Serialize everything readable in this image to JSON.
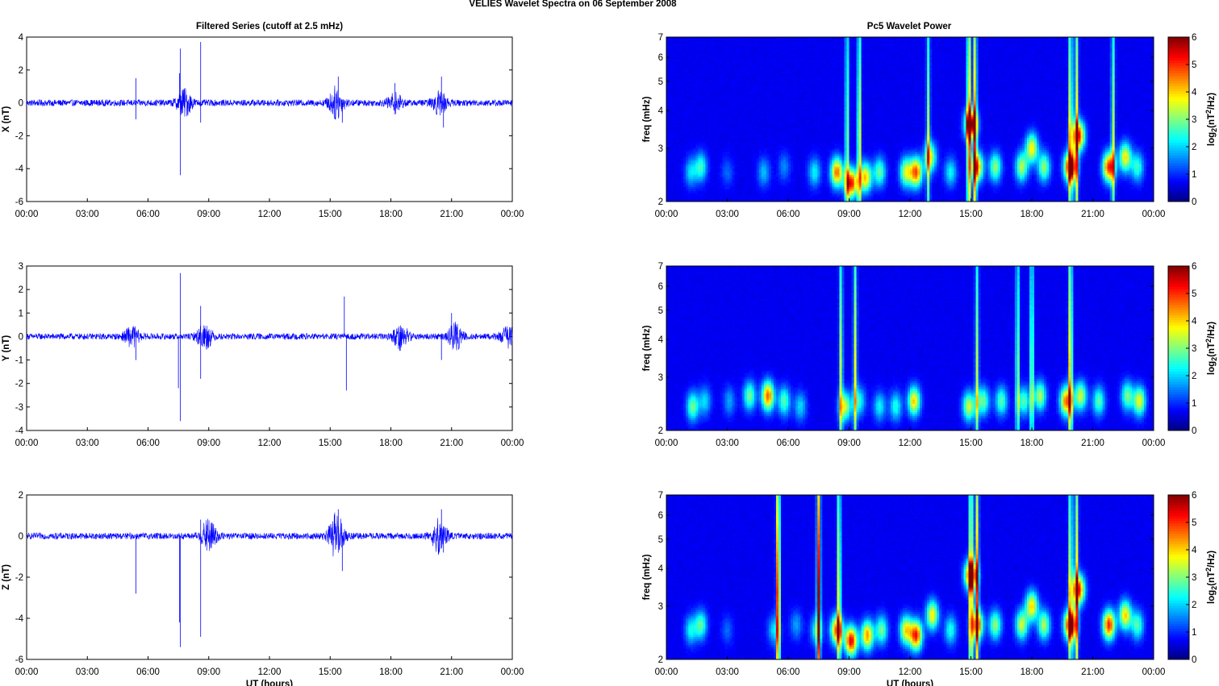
{
  "figure_title": "VELIES Wavelet Spectra on 06 September 2008",
  "left_title": "Filtered Series (cutoff at 2.5 mHz)",
  "right_title": "Pc5 Wavelet Power",
  "x_axis_label": "UT (hours)",
  "x_ticks": [
    "00:00",
    "03:00",
    "06:00",
    "09:00",
    "12:00",
    "15:00",
    "18:00",
    "21:00",
    "00:00"
  ],
  "freq_label": "freq (mHz)",
  "freq_ticks": [
    "2",
    "3",
    "4",
    "5",
    "6",
    "7"
  ],
  "colorbar_ticks": [
    "0",
    "1",
    "2",
    "3",
    "4",
    "5",
    "6"
  ],
  "colorbar_label": {
    "base": "log",
    "sub": "2",
    "mid": "(nT",
    "sup": "2",
    "end": "/Hz)"
  },
  "panels": [
    {
      "ylabel": "X (nT)",
      "yticks": [
        "4",
        "2",
        "0",
        "-2",
        "-4",
        "-6"
      ]
    },
    {
      "ylabel": "Y (nT)",
      "yticks": [
        "3",
        "2",
        "1",
        "0",
        "-1",
        "-2",
        "-3",
        "-4"
      ]
    },
    {
      "ylabel": "Z (nT)",
      "yticks": [
        "2",
        "0",
        "-2",
        "-4",
        "-6"
      ]
    }
  ],
  "chart_data": [
    {
      "type": "line",
      "title": "Filtered Series (cutoff at 2.5 mHz)",
      "xlabel": "",
      "ylabel": "X (nT)",
      "xlim": [
        0,
        24
      ],
      "ylim": [
        -6,
        4
      ],
      "series": [
        {
          "color": "#0000ff",
          "noise_amplitude_nT": 0.15,
          "bursts": [
            [
              7.8,
              0.6
            ],
            [
              15.3,
              0.7
            ],
            [
              20.4,
              0.5
            ],
            [
              18.2,
              0.4
            ]
          ],
          "spikes": [
            [
              5.4,
              1.5
            ],
            [
              5.4,
              -1.0
            ],
            [
              7.6,
              3.3
            ],
            [
              7.6,
              -4.4
            ],
            [
              7.55,
              1.8
            ],
            [
              8.6,
              3.7
            ],
            [
              8.6,
              -1.2
            ],
            [
              15.4,
              1.6
            ],
            [
              15.6,
              -1.2
            ],
            [
              18.2,
              1.2
            ],
            [
              20.5,
              1.6
            ],
            [
              20.6,
              -1.5
            ]
          ]
        }
      ]
    },
    {
      "type": "line",
      "title": "",
      "xlabel": "",
      "ylabel": "Y (nT)",
      "xlim": [
        0,
        24
      ],
      "ylim": [
        -4,
        3
      ],
      "series": [
        {
          "color": "#0000ff",
          "noise_amplitude_nT": 0.1,
          "bursts": [
            [
              5.2,
              0.3
            ],
            [
              8.8,
              0.4
            ],
            [
              18.5,
              0.4
            ],
            [
              21.2,
              0.4
            ],
            [
              23.8,
              0.3
            ]
          ],
          "spikes": [
            [
              5.4,
              -1.0
            ],
            [
              7.6,
              2.7
            ],
            [
              7.6,
              -3.6
            ],
            [
              7.5,
              -2.2
            ],
            [
              8.6,
              1.3
            ],
            [
              8.6,
              -1.8
            ],
            [
              15.7,
              1.7
            ],
            [
              15.8,
              -2.3
            ],
            [
              20.5,
              -1.0
            ],
            [
              21.0,
              1.0
            ]
          ]
        }
      ]
    },
    {
      "type": "line",
      "title": "",
      "xlabel": "UT (hours)",
      "ylabel": "Z (nT)",
      "xlim": [
        0,
        24
      ],
      "ylim": [
        -6,
        2
      ],
      "series": [
        {
          "color": "#0000ff",
          "noise_amplitude_nT": 0.12,
          "bursts": [
            [
              9.0,
              0.6
            ],
            [
              15.3,
              0.8
            ],
            [
              20.4,
              0.6
            ]
          ],
          "spikes": [
            [
              5.4,
              -2.8
            ],
            [
              7.6,
              -5.4
            ],
            [
              7.55,
              -4.2
            ],
            [
              8.6,
              -4.9
            ],
            [
              8.6,
              0.8
            ],
            [
              15.4,
              1.3
            ],
            [
              15.6,
              -1.7
            ],
            [
              20.5,
              1.3
            ],
            [
              20.6,
              -0.8
            ]
          ]
        }
      ]
    },
    {
      "type": "heatmap",
      "title": "Pc5 Wavelet Power",
      "xlabel": "",
      "ylabel": "freq (mHz)",
      "xlim": [
        0,
        24
      ],
      "ylim": [
        2,
        7
      ],
      "yscale": "log",
      "zlim": [
        0,
        6
      ],
      "colormap": "jet",
      "blobs": [
        [
          1.2,
          2.5,
          1.6
        ],
        [
          1.7,
          2.6,
          2.2
        ],
        [
          3.0,
          2.5,
          0.8
        ],
        [
          4.8,
          2.5,
          1.4
        ],
        [
          5.8,
          2.6,
          1.0
        ],
        [
          7.3,
          2.5,
          1.8
        ],
        [
          8.4,
          2.5,
          4.5
        ],
        [
          9.1,
          2.3,
          5.3
        ],
        [
          9.8,
          2.4,
          4.0
        ],
        [
          10.5,
          2.5,
          2.5
        ],
        [
          11.8,
          2.5,
          3.2
        ],
        [
          12.3,
          2.5,
          4.6
        ],
        [
          13.0,
          2.8,
          3.2
        ],
        [
          14.0,
          2.5,
          1.8
        ],
        [
          15.0,
          3.6,
          5.6
        ],
        [
          15.3,
          2.6,
          4.4
        ],
        [
          16.2,
          2.6,
          2.8
        ],
        [
          17.5,
          2.6,
          3.0
        ],
        [
          18.0,
          3.0,
          3.6
        ],
        [
          18.6,
          2.6,
          2.8
        ],
        [
          19.9,
          2.6,
          5.9
        ],
        [
          20.3,
          3.3,
          5.0
        ],
        [
          21.8,
          2.6,
          5.0
        ],
        [
          22.6,
          2.8,
          3.6
        ],
        [
          23.2,
          2.6,
          2.2
        ]
      ],
      "streaks": [
        [
          8.9,
          3.0
        ],
        [
          9.5,
          3.8
        ],
        [
          14.9,
          5.2
        ],
        [
          15.2,
          4.8
        ],
        [
          19.9,
          4.2
        ],
        [
          20.2,
          4.0
        ],
        [
          22.0,
          3.2
        ],
        [
          12.9,
          3.0
        ]
      ]
    },
    {
      "type": "heatmap",
      "title": "",
      "xlabel": "",
      "ylabel": "freq (mHz)",
      "xlim": [
        0,
        24
      ],
      "ylim": [
        2,
        7
      ],
      "yscale": "log",
      "zlim": [
        0,
        6
      ],
      "colormap": "jet",
      "blobs": [
        [
          1.3,
          2.4,
          2.6
        ],
        [
          1.9,
          2.5,
          1.6
        ],
        [
          3.1,
          2.5,
          1.2
        ],
        [
          4.1,
          2.6,
          2.6
        ],
        [
          5.0,
          2.6,
          4.6
        ],
        [
          5.8,
          2.5,
          2.4
        ],
        [
          6.6,
          2.4,
          1.6
        ],
        [
          8.8,
          2.4,
          3.2
        ],
        [
          9.5,
          2.5,
          2.0
        ],
        [
          10.5,
          2.4,
          1.8
        ],
        [
          11.3,
          2.4,
          2.0
        ],
        [
          12.2,
          2.5,
          3.8
        ],
        [
          14.9,
          2.4,
          3.2
        ],
        [
          15.6,
          2.5,
          2.6
        ],
        [
          16.5,
          2.5,
          2.4
        ],
        [
          17.6,
          2.5,
          2.4
        ],
        [
          18.4,
          2.6,
          3.0
        ],
        [
          19.7,
          2.5,
          4.6
        ],
        [
          20.4,
          2.6,
          3.2
        ],
        [
          21.3,
          2.5,
          2.4
        ],
        [
          22.7,
          2.6,
          2.6
        ],
        [
          23.3,
          2.5,
          3.4
        ]
      ],
      "streaks": [
        [
          8.6,
          3.2
        ],
        [
          9.3,
          3.4
        ],
        [
          15.3,
          3.0
        ],
        [
          17.3,
          3.0
        ],
        [
          18.0,
          3.2
        ],
        [
          19.9,
          4.6
        ]
      ]
    },
    {
      "type": "heatmap",
      "title": "",
      "xlabel": "UT (hours)",
      "ylabel": "freq (mHz)",
      "xlim": [
        0,
        24
      ],
      "ylim": [
        2,
        7
      ],
      "yscale": "log",
      "zlim": [
        0,
        6
      ],
      "colormap": "jet",
      "blobs": [
        [
          1.2,
          2.5,
          1.8
        ],
        [
          1.7,
          2.6,
          2.4
        ],
        [
          3.0,
          2.5,
          0.8
        ],
        [
          5.3,
          2.5,
          1.6
        ],
        [
          6.4,
          2.6,
          1.2
        ],
        [
          7.4,
          2.5,
          2.0
        ],
        [
          8.4,
          2.5,
          4.6
        ],
        [
          9.1,
          2.3,
          5.4
        ],
        [
          9.9,
          2.4,
          4.2
        ],
        [
          10.6,
          2.5,
          2.6
        ],
        [
          11.8,
          2.5,
          3.6
        ],
        [
          12.3,
          2.4,
          5.0
        ],
        [
          13.1,
          2.8,
          3.6
        ],
        [
          14.0,
          2.5,
          2.0
        ],
        [
          15.0,
          3.8,
          5.5
        ],
        [
          15.3,
          2.6,
          4.4
        ],
        [
          16.2,
          2.6,
          2.8
        ],
        [
          17.5,
          2.6,
          3.2
        ],
        [
          18.0,
          3.0,
          3.8
        ],
        [
          18.6,
          2.6,
          3.0
        ],
        [
          19.9,
          2.6,
          5.8
        ],
        [
          20.3,
          3.4,
          5.0
        ],
        [
          21.8,
          2.6,
          5.0
        ],
        [
          22.6,
          2.8,
          3.8
        ],
        [
          23.2,
          2.6,
          2.4
        ]
      ],
      "streaks": [
        [
          5.5,
          6.0
        ],
        [
          7.5,
          6.0
        ],
        [
          8.5,
          4.0
        ],
        [
          15.0,
          5.0
        ],
        [
          15.3,
          4.6
        ],
        [
          19.9,
          4.0
        ],
        [
          20.2,
          4.2
        ]
      ]
    }
  ]
}
